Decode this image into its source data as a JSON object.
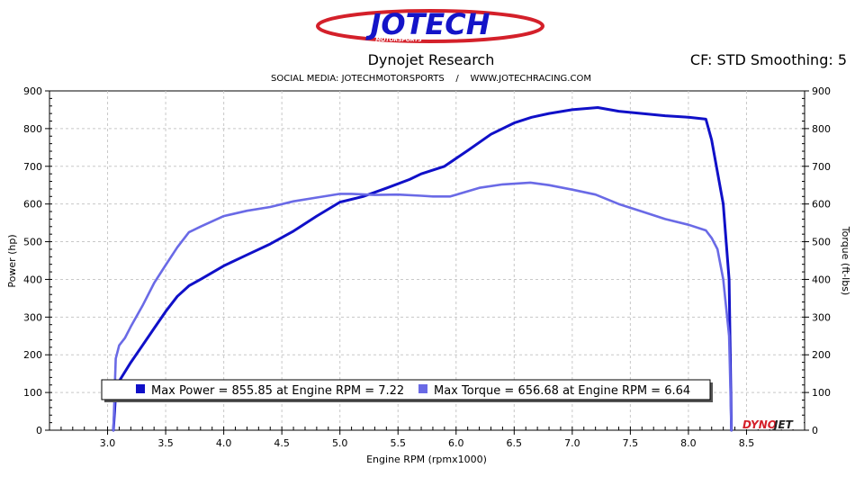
{
  "header": {
    "logo_main": "JOTECH",
    "logo_sub": "MOTORSPORTS",
    "title": "Dynojet Research",
    "correction": "CF: STD Smoothing: 5",
    "social": "SOCIAL MEDIA: JOTECHMOTORSPORTS    /    WWW.JOTECHRACING.COM",
    "watermark_a": "DYNO",
    "watermark_b": "JET"
  },
  "colors": {
    "power": "#1010c8",
    "torque": "#6a6ae6",
    "grid": "#c8c8c8",
    "logo_red": "#d4202a",
    "logo_blue": "#1414c8"
  },
  "legend": {
    "power": "Max Power = 855.85 at Engine RPM = 7.22",
    "torque": "Max Torque = 656.68 at Engine RPM = 6.64"
  },
  "chart_data": {
    "type": "line",
    "title": "Dynojet Research",
    "xlabel": "Engine RPM (rpmx1000)",
    "ylabel_left": "Power (hp)",
    "ylabel_right": "Torque (ft-lbs)",
    "xlim": [
      2.5,
      9.0
    ],
    "ylim": [
      0,
      900
    ],
    "xticks": [
      "3.0",
      "3.5",
      "4.0",
      "4.5",
      "5.0",
      "5.5",
      "6.0",
      "6.5",
      "7.0",
      "7.5",
      "8.0",
      "8.5"
    ],
    "yticks": [
      "0",
      "100",
      "200",
      "300",
      "400",
      "500",
      "600",
      "700",
      "800",
      "900"
    ],
    "grid": true,
    "series": [
      {
        "name": "Power",
        "axis": "left",
        "x": [
          3.05,
          3.07,
          3.1,
          3.2,
          3.3,
          3.4,
          3.5,
          3.6,
          3.7,
          3.8,
          3.9,
          4.0,
          4.2,
          4.4,
          4.6,
          4.8,
          5.0,
          5.2,
          5.4,
          5.6,
          5.7,
          5.9,
          6.1,
          6.3,
          6.5,
          6.65,
          6.8,
          7.0,
          7.22,
          7.4,
          7.6,
          7.8,
          8.0,
          8.15,
          8.2,
          8.3,
          8.35,
          8.37
        ],
        "y": [
          0,
          100,
          130,
          180,
          225,
          270,
          315,
          355,
          383,
          400,
          418,
          436,
          465,
          494,
          528,
          568,
          605,
          620,
          642,
          665,
          680,
          700,
          742,
          785,
          815,
          830,
          840,
          850,
          855.85,
          846,
          840,
          834,
          830,
          825,
          770,
          600,
          400,
          0
        ]
      },
      {
        "name": "Torque",
        "axis": "right",
        "x": [
          3.05,
          3.07,
          3.1,
          3.15,
          3.2,
          3.3,
          3.4,
          3.5,
          3.6,
          3.7,
          3.8,
          4.0,
          4.2,
          4.4,
          4.6,
          4.8,
          5.0,
          5.1,
          5.3,
          5.5,
          5.7,
          5.8,
          5.95,
          6.2,
          6.4,
          6.64,
          6.8,
          7.0,
          7.2,
          7.4,
          7.6,
          7.8,
          8.0,
          8.15,
          8.2,
          8.25,
          8.3,
          8.35,
          8.37
        ],
        "y": [
          0,
          190,
          225,
          245,
          275,
          330,
          390,
          438,
          485,
          525,
          540,
          568,
          582,
          592,
          607,
          617,
          627,
          627,
          624,
          625,
          622,
          620,
          620,
          643,
          652,
          656.68,
          650,
          638,
          625,
          600,
          580,
          560,
          545,
          530,
          510,
          480,
          400,
          250,
          0
        ]
      }
    ]
  }
}
